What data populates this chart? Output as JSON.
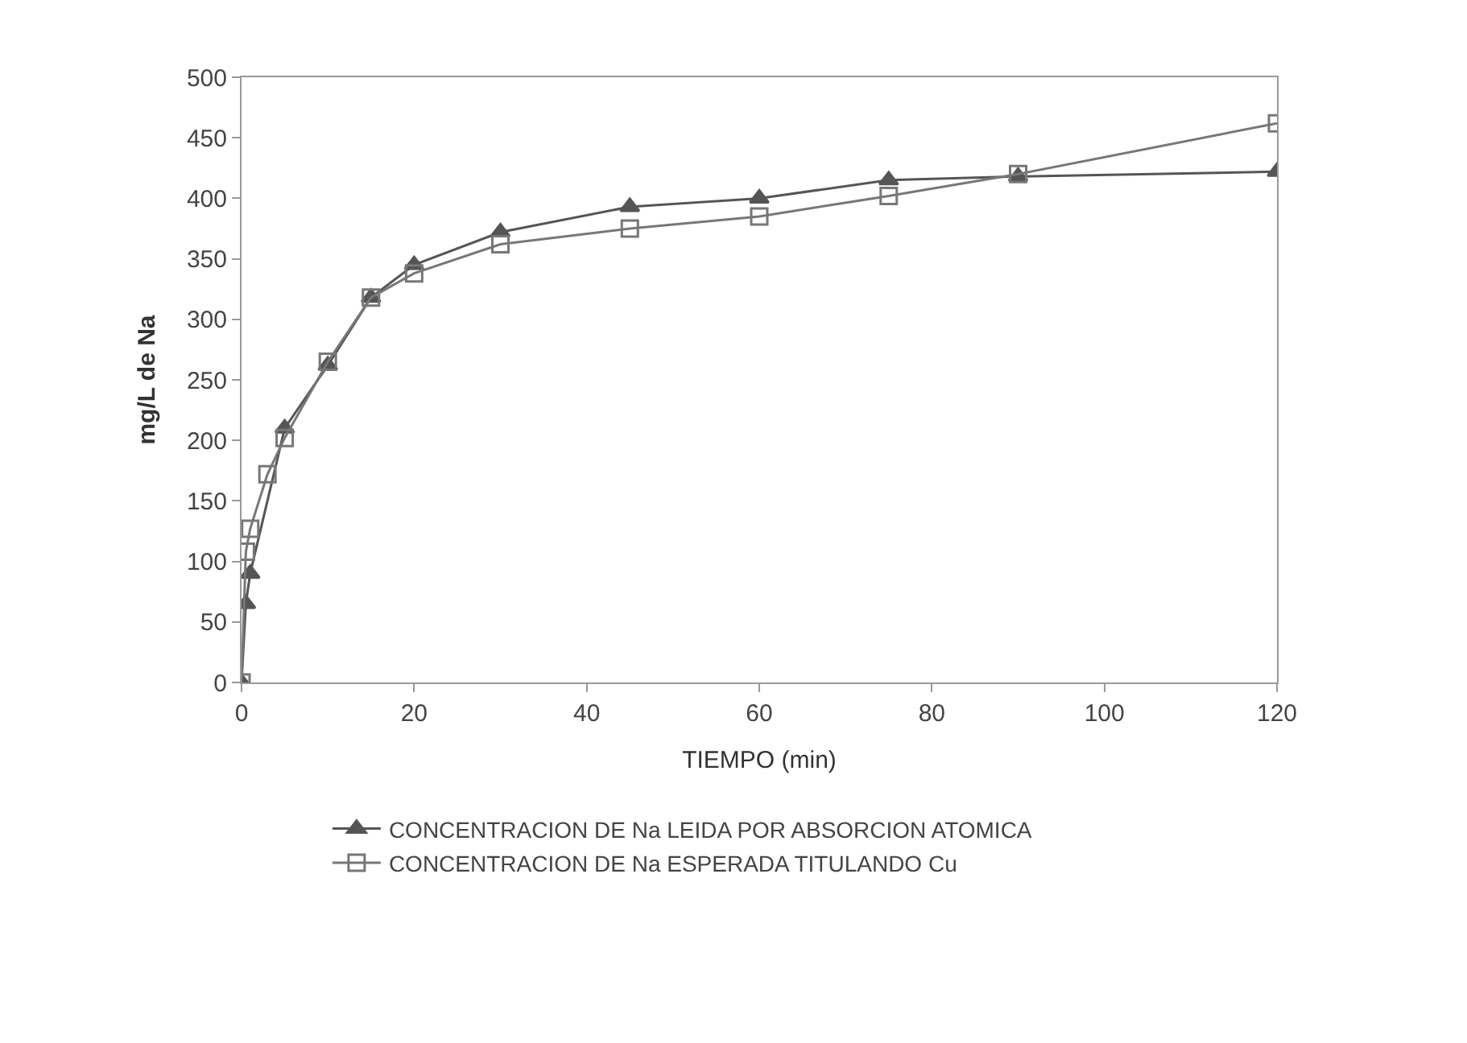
{
  "chart_data": {
    "type": "line",
    "xlabel": "TIEMPO (min)",
    "ylabel": "mg/L de Na",
    "xlim": [
      0,
      120
    ],
    "xticks": [
      0,
      20,
      40,
      60,
      80,
      100,
      120
    ],
    "ylim": [
      0,
      500
    ],
    "yticks": [
      0,
      50,
      100,
      150,
      200,
      250,
      300,
      350,
      400,
      450,
      500
    ],
    "legend": "bottom",
    "line_style": "solid",
    "series": [
      {
        "name": "CONCENTRACION DE Na LEIDA POR ABSORCION ATOMICA",
        "color": "#555555",
        "marker": "triangle",
        "x": [
          0,
          0.5,
          1,
          5,
          10,
          15,
          20,
          30,
          45,
          60,
          75,
          90,
          120
        ],
        "values": [
          0,
          65,
          90,
          210,
          262,
          318,
          345,
          372,
          393,
          400,
          415,
          418,
          422
        ]
      },
      {
        "name": "CONCENTRACION DE Na ESPERADA TITULANDO Cu",
        "color": "#777777",
        "marker": "square",
        "x": [
          0,
          0.5,
          1,
          3,
          5,
          10,
          15,
          20,
          30,
          45,
          60,
          75,
          90,
          120
        ],
        "values": [
          0,
          108,
          127,
          172,
          202,
          265,
          318,
          338,
          362,
          375,
          385,
          402,
          420,
          462
        ]
      }
    ]
  }
}
